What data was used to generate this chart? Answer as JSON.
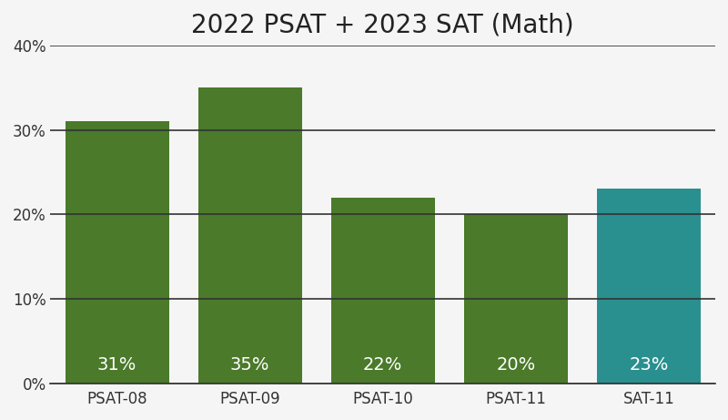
{
  "title": "2022 PSAT + 2023 SAT (Math)",
  "categories": [
    "PSAT-08",
    "PSAT-09",
    "PSAT-10",
    "PSAT-11",
    "SAT-11"
  ],
  "values": [
    31,
    35,
    22,
    20,
    23
  ],
  "bar_colors": [
    "#4a7a2a",
    "#4a7a2a",
    "#4a7a2a",
    "#4a7a2a",
    "#2a8f8f"
  ],
  "labels": [
    "31%",
    "35%",
    "22%",
    "20%",
    "23%"
  ],
  "ylim": [
    0,
    40
  ],
  "yticks": [
    0,
    10,
    20,
    30,
    40
  ],
  "ytick_labels": [
    "0%",
    "10%",
    "20%",
    "30%",
    "40%"
  ],
  "title_fontsize": 20,
  "tick_fontsize": 12,
  "background_color": "#f5f5f5",
  "bar_label_color": "#ffffff",
  "bar_label_fontsize": 14,
  "grid_color": "#333333",
  "grid_linewidth": 1.2,
  "spine_color": "#333333",
  "bar_width": 0.78
}
